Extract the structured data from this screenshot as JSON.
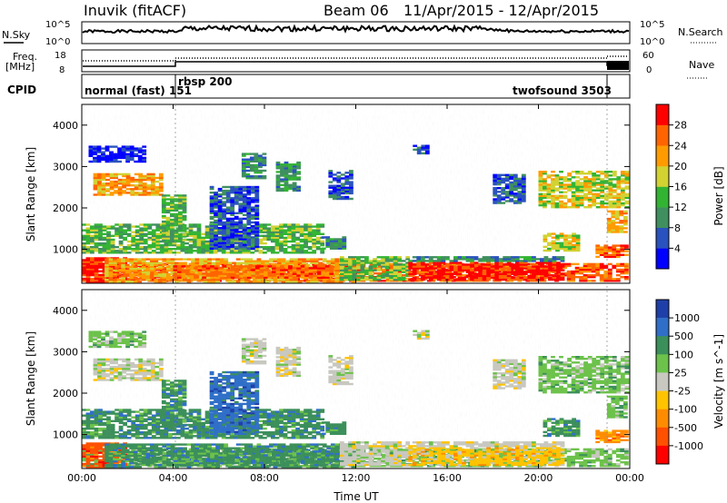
{
  "header": {
    "station": "Inuvik (fitACF)",
    "beam": "Beam 06",
    "date_range": "11/Apr/2015 - 12/Apr/2015"
  },
  "top_panels": {
    "nsky_label": "N.Sky",
    "nsky_tick_top": "10^5",
    "nsky_tick_bottom": "10^0",
    "nsearch_label": "N.Search",
    "nsearch_tick_top": "10^5",
    "nsearch_tick_bottom": "10^0",
    "freq_label_1": "Freq.",
    "freq_label_2": "[MHz]",
    "freq_tick_top": "18",
    "freq_tick_bottom": "8",
    "nave_label": "Nave",
    "nave_tick_top": "60",
    "nave_tick_bottom": "0",
    "cpid_label": "CPID",
    "cpid_modes": [
      {
        "name": "normal (fast) 151"
      },
      {
        "name": "rbsp 200"
      },
      {
        "name": "twofsound 3503"
      }
    ]
  },
  "chart_data": [
    {
      "type": "heatmap",
      "title": "",
      "ylabel": "Slant Range [km]",
      "ylim": [
        180,
        4500
      ],
      "yticks": [
        "1000",
        "2000",
        "3000",
        "4000"
      ],
      "colorbar": {
        "label": "Power [dB]",
        "ticks": [
          "4",
          "8",
          "12",
          "16",
          "20",
          "24",
          "28"
        ],
        "colors": [
          "#0000ff",
          "#2a52be",
          "#3f8f5f",
          "#32b432",
          "#d2d232",
          "#ff9b00",
          "#ff6400",
          "#ff0000"
        ]
      }
    },
    {
      "type": "heatmap",
      "title": "",
      "xlabel": "Time UT",
      "ylabel": "Slant Range [km]",
      "ylim": [
        180,
        4500
      ],
      "xticks": [
        "00:00",
        "04:00",
        "08:00",
        "12:00",
        "16:00",
        "20:00",
        "00:00"
      ],
      "yticks": [
        "1000",
        "2000",
        "3000",
        "4000"
      ],
      "colorbar": {
        "label": "Velocity [m s^-1]",
        "ticks": [
          "1000",
          "500",
          "100",
          "25",
          "-25",
          "-100",
          "-500",
          "-1000"
        ],
        "colors": [
          "#1f3fa8",
          "#2f6fc8",
          "#3b8f5a",
          "#6cc24a",
          "#c8c8c0",
          "#ffc300",
          "#ff8c00",
          "#ff5000",
          "#ff0000"
        ]
      }
    }
  ]
}
